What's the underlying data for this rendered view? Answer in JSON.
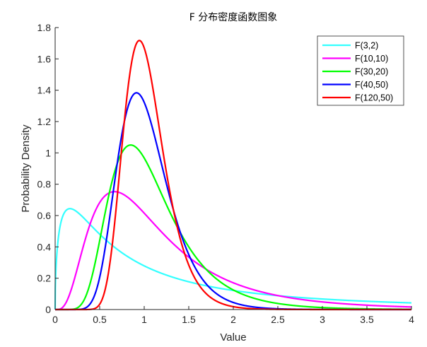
{
  "chart_data": {
    "type": "line",
    "title": "F 分布密度函数图象",
    "xlabel": "Value",
    "ylabel": "Probability Density",
    "xlim": [
      0,
      4
    ],
    "ylim": [
      0,
      1.8
    ],
    "x_ticks": [
      0,
      0.5,
      1,
      1.5,
      2,
      2.5,
      3,
      3.5,
      4
    ],
    "x_tick_labels": [
      "0",
      "0.5",
      "1",
      "1.5",
      "2",
      "2.5",
      "3",
      "3.5",
      "4"
    ],
    "y_ticks": [
      0,
      0.2,
      0.4,
      0.6,
      0.8,
      1,
      1.2,
      1.4,
      1.6,
      1.8
    ],
    "y_tick_labels": [
      "0",
      "0.2",
      "0.4",
      "0.6",
      "0.8",
      "1",
      "1.2",
      "1.4",
      "1.6",
      "1.8"
    ],
    "grid": false,
    "legend_position": "top-right",
    "series": [
      {
        "name": "F(3,2)",
        "d1": 3,
        "d2": 2,
        "color": "#33ffff",
        "peak": [
          0.17,
          0.64
        ]
      },
      {
        "name": "F(10,10)",
        "d1": 10,
        "d2": 10,
        "color": "#ff00ff",
        "peak": [
          0.67,
          0.75
        ]
      },
      {
        "name": "F(30,20)",
        "d1": 30,
        "d2": 20,
        "color": "#00ff00",
        "peak": [
          0.85,
          1.05
        ]
      },
      {
        "name": "F(40,50)",
        "d1": 40,
        "d2": 50,
        "color": "#0000ff",
        "peak": [
          0.92,
          1.38
        ]
      },
      {
        "name": "F(120,50)",
        "d1": 120,
        "d2": 50,
        "color": "#ff0000",
        "peak": [
          0.95,
          1.72
        ]
      }
    ]
  }
}
